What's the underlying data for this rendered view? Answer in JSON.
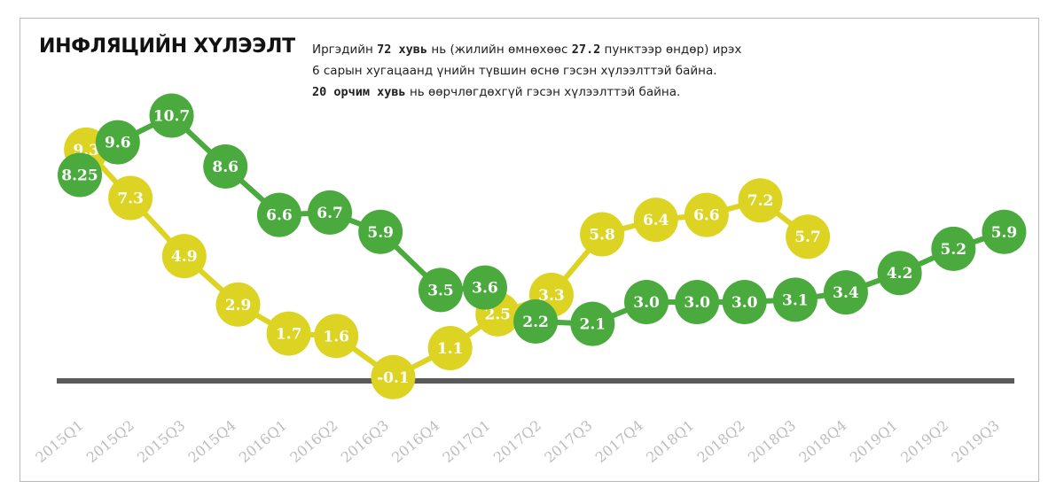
{
  "title": "ИНФЛЯЦИЙН ХҮЛЭЭЛТ",
  "description": {
    "line1_a": "Иргэдийн ",
    "line1_b": "72 хувь",
    "line1_c": " нь (жилийн өмнөхөөс ",
    "line1_d": "27.2",
    "line1_e": " пунктээр өндөр) ирэх",
    "line2": "6 сарын хугацаанд үнийн түвшин өснө гэсэн хүлээлттэй байна.",
    "line3_a": "20 орчим хувь",
    "line3_b": " нь өөрчлөгдөхгүй гэсэн хүлээлттэй байна."
  },
  "colors": {
    "green": "#4aaa3d",
    "yellow": "#ddd322",
    "axis": "#5a5a5a",
    "tick": "#bdbdbd"
  },
  "chart_data": {
    "type": "line",
    "categories": [
      "2015Q1",
      "2015Q2",
      "2015Q3",
      "2015Q4",
      "2016Q1",
      "2016Q2",
      "2016Q3",
      "2016Q4",
      "2017Q1",
      "2017Q2",
      "2017Q3",
      "2017Q4",
      "2018Q1",
      "2018Q2",
      "2018Q3",
      "2018Q4",
      "2019Q1",
      "2019Q2",
      "2019Q3"
    ],
    "series": [
      {
        "name": "green",
        "color": "#4aaa3d",
        "points": [
          {
            "q": 0,
            "v": 8.25,
            "label": "8.25"
          },
          {
            "q": 0.6,
            "v": 9.6,
            "label": "9.6"
          },
          {
            "q": 1.45,
            "v": 10.7,
            "label": "10.7"
          },
          {
            "q": 2.3,
            "v": 8.6,
            "label": "8.6"
          },
          {
            "q": 3.15,
            "v": 6.6,
            "label": "6.6"
          },
          {
            "q": 3.95,
            "v": 6.7,
            "label": "6.7"
          },
          {
            "q": 4.75,
            "v": 5.9,
            "label": "5.9"
          },
          {
            "q": 5.7,
            "v": 3.5,
            "label": "3.5"
          },
          {
            "q": 6.4,
            "v": 3.6,
            "label": "3.6"
          },
          {
            "q": 7.2,
            "v": 2.2,
            "label": "2.2"
          },
          {
            "q": 8.1,
            "v": 2.1,
            "label": "2.1"
          },
          {
            "q": 8.95,
            "v": 3.0,
            "label": "3.0"
          },
          {
            "q": 9.75,
            "v": 3.0,
            "label": "3.0"
          },
          {
            "q": 10.5,
            "v": 3.0,
            "label": "3.0"
          },
          {
            "q": 11.3,
            "v": 3.1,
            "label": "3.1"
          },
          {
            "q": 12.1,
            "v": 3.4,
            "label": "3.4"
          },
          {
            "q": 12.95,
            "v": 4.2,
            "label": "4.2"
          },
          {
            "q": 13.8,
            "v": 5.2,
            "label": "5.2"
          },
          {
            "q": 14.6,
            "v": 5.9,
            "label": "5.9"
          }
        ]
      },
      {
        "name": "yellow",
        "color": "#ddd322",
        "points": [
          {
            "q": 0.1,
            "v": 9.3,
            "label": "9.3"
          },
          {
            "q": 0.8,
            "v": 7.3,
            "label": "7.3"
          },
          {
            "q": 1.65,
            "v": 4.9,
            "label": "4.9"
          },
          {
            "q": 2.5,
            "v": 2.9,
            "label": "2.9"
          },
          {
            "q": 3.3,
            "v": 1.7,
            "label": "1.7"
          },
          {
            "q": 4.05,
            "v": 1.6,
            "label": "1.6"
          },
          {
            "q": 4.95,
            "v": -0.1,
            "label": "-0.1"
          },
          {
            "q": 5.85,
            "v": 1.1,
            "label": "1.1"
          },
          {
            "q": 6.6,
            "v": 2.5,
            "label": "2.5"
          },
          {
            "q": 7.45,
            "v": 3.3,
            "label": "3.3"
          },
          {
            "q": 8.25,
            "v": 5.8,
            "label": "5.8"
          },
          {
            "q": 9.1,
            "v": 6.4,
            "label": "6.4"
          },
          {
            "q": 9.9,
            "v": 6.6,
            "label": "6.6"
          },
          {
            "q": 10.75,
            "v": 7.2,
            "label": "7.2"
          },
          {
            "q": 11.5,
            "v": 5.7,
            "label": "5.7"
          }
        ]
      }
    ],
    "ylim": [
      -0.4,
      12
    ],
    "xlabel": "",
    "ylabel": ""
  }
}
